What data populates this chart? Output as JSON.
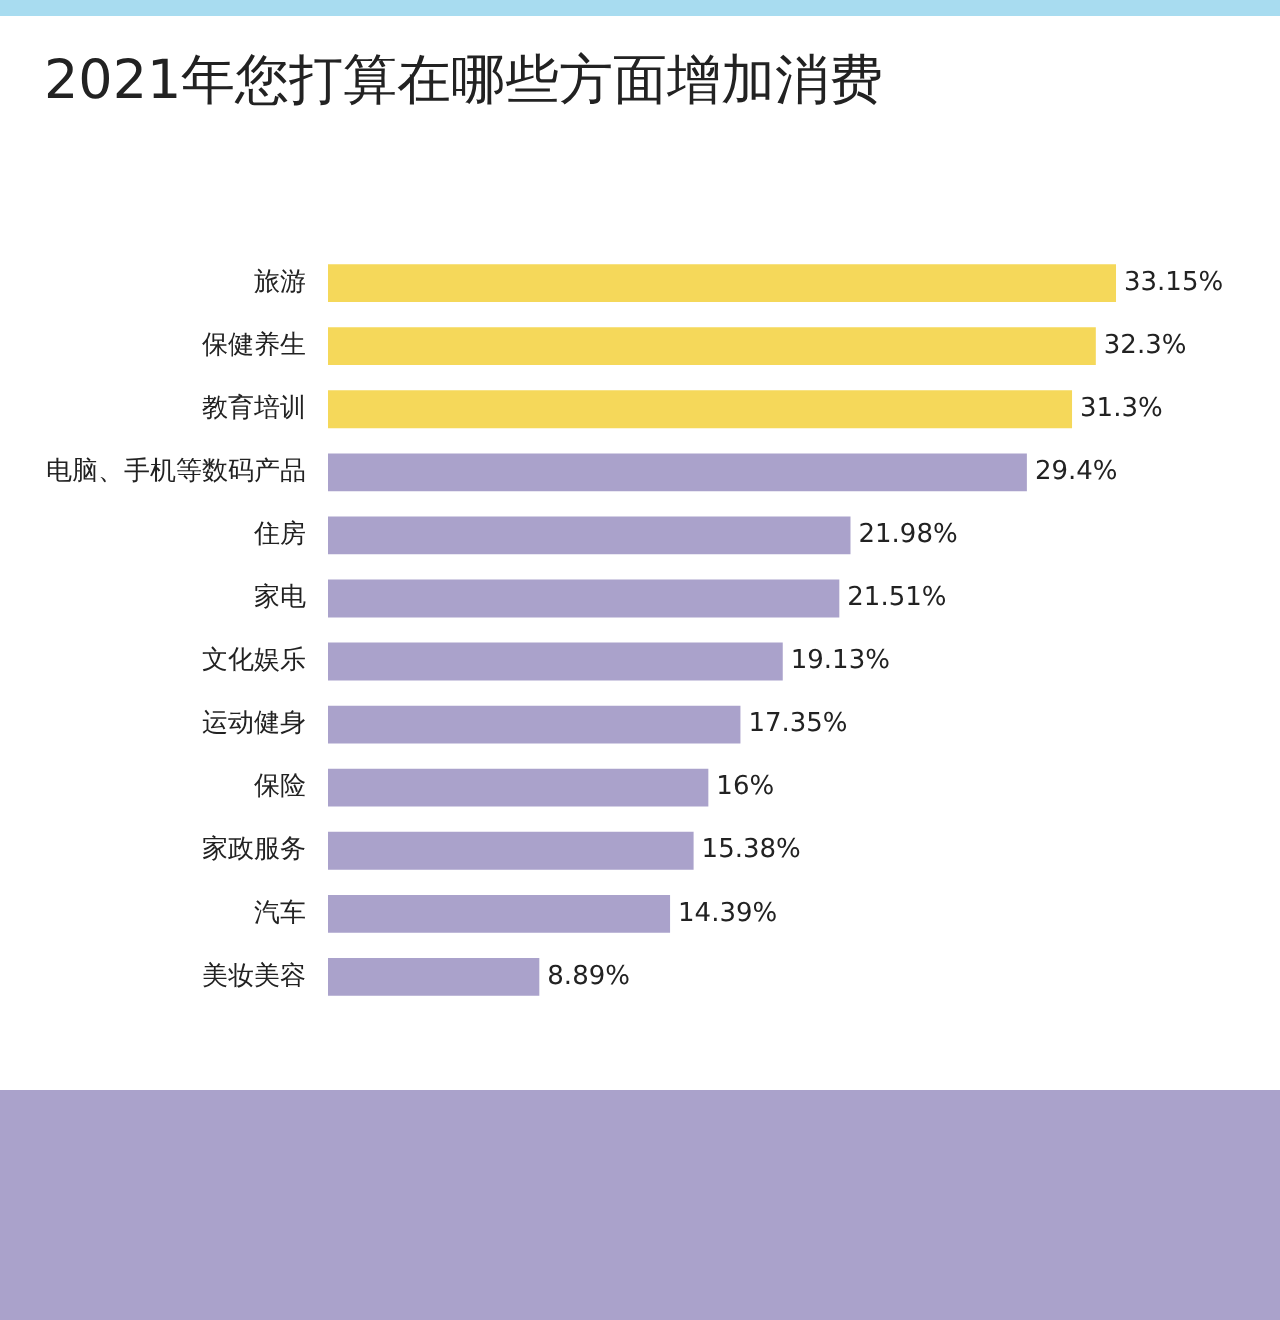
{
  "chart_data": {
    "type": "bar",
    "orientation": "horizontal",
    "title": "2021年您打算在哪些方面增加消费",
    "categories": [
      "旅游",
      "保健养生",
      "教育培训",
      "电脑、手机等数码产品",
      "住房",
      "家电",
      "文化娱乐",
      "运动健身",
      "保险",
      "家政服务",
      "汽车",
      "美妆美容"
    ],
    "values": [
      33.15,
      32.3,
      31.3,
      29.4,
      21.98,
      21.51,
      19.13,
      17.35,
      16,
      15.38,
      14.39,
      8.89
    ],
    "colors": [
      "#f5d85a",
      "#f5d85a",
      "#f5d85a",
      "#aaa2cb",
      "#aaa2cb",
      "#aaa2cb",
      "#aaa2cb",
      "#aaa2cb",
      "#aaa2cb",
      "#aaa2cb",
      "#aaa2cb",
      "#aaa2cb"
    ],
    "value_labels": [
      "33.15%",
      "32.3%",
      "31.3%",
      "29.4%",
      "21.98%",
      "21.51%",
      "19.13%",
      "17.35%",
      "16%",
      "15.38%",
      "14.39%",
      "8.89%"
    ],
    "tick_labels": "y",
    "grid": false,
    "legend": false
  }
}
